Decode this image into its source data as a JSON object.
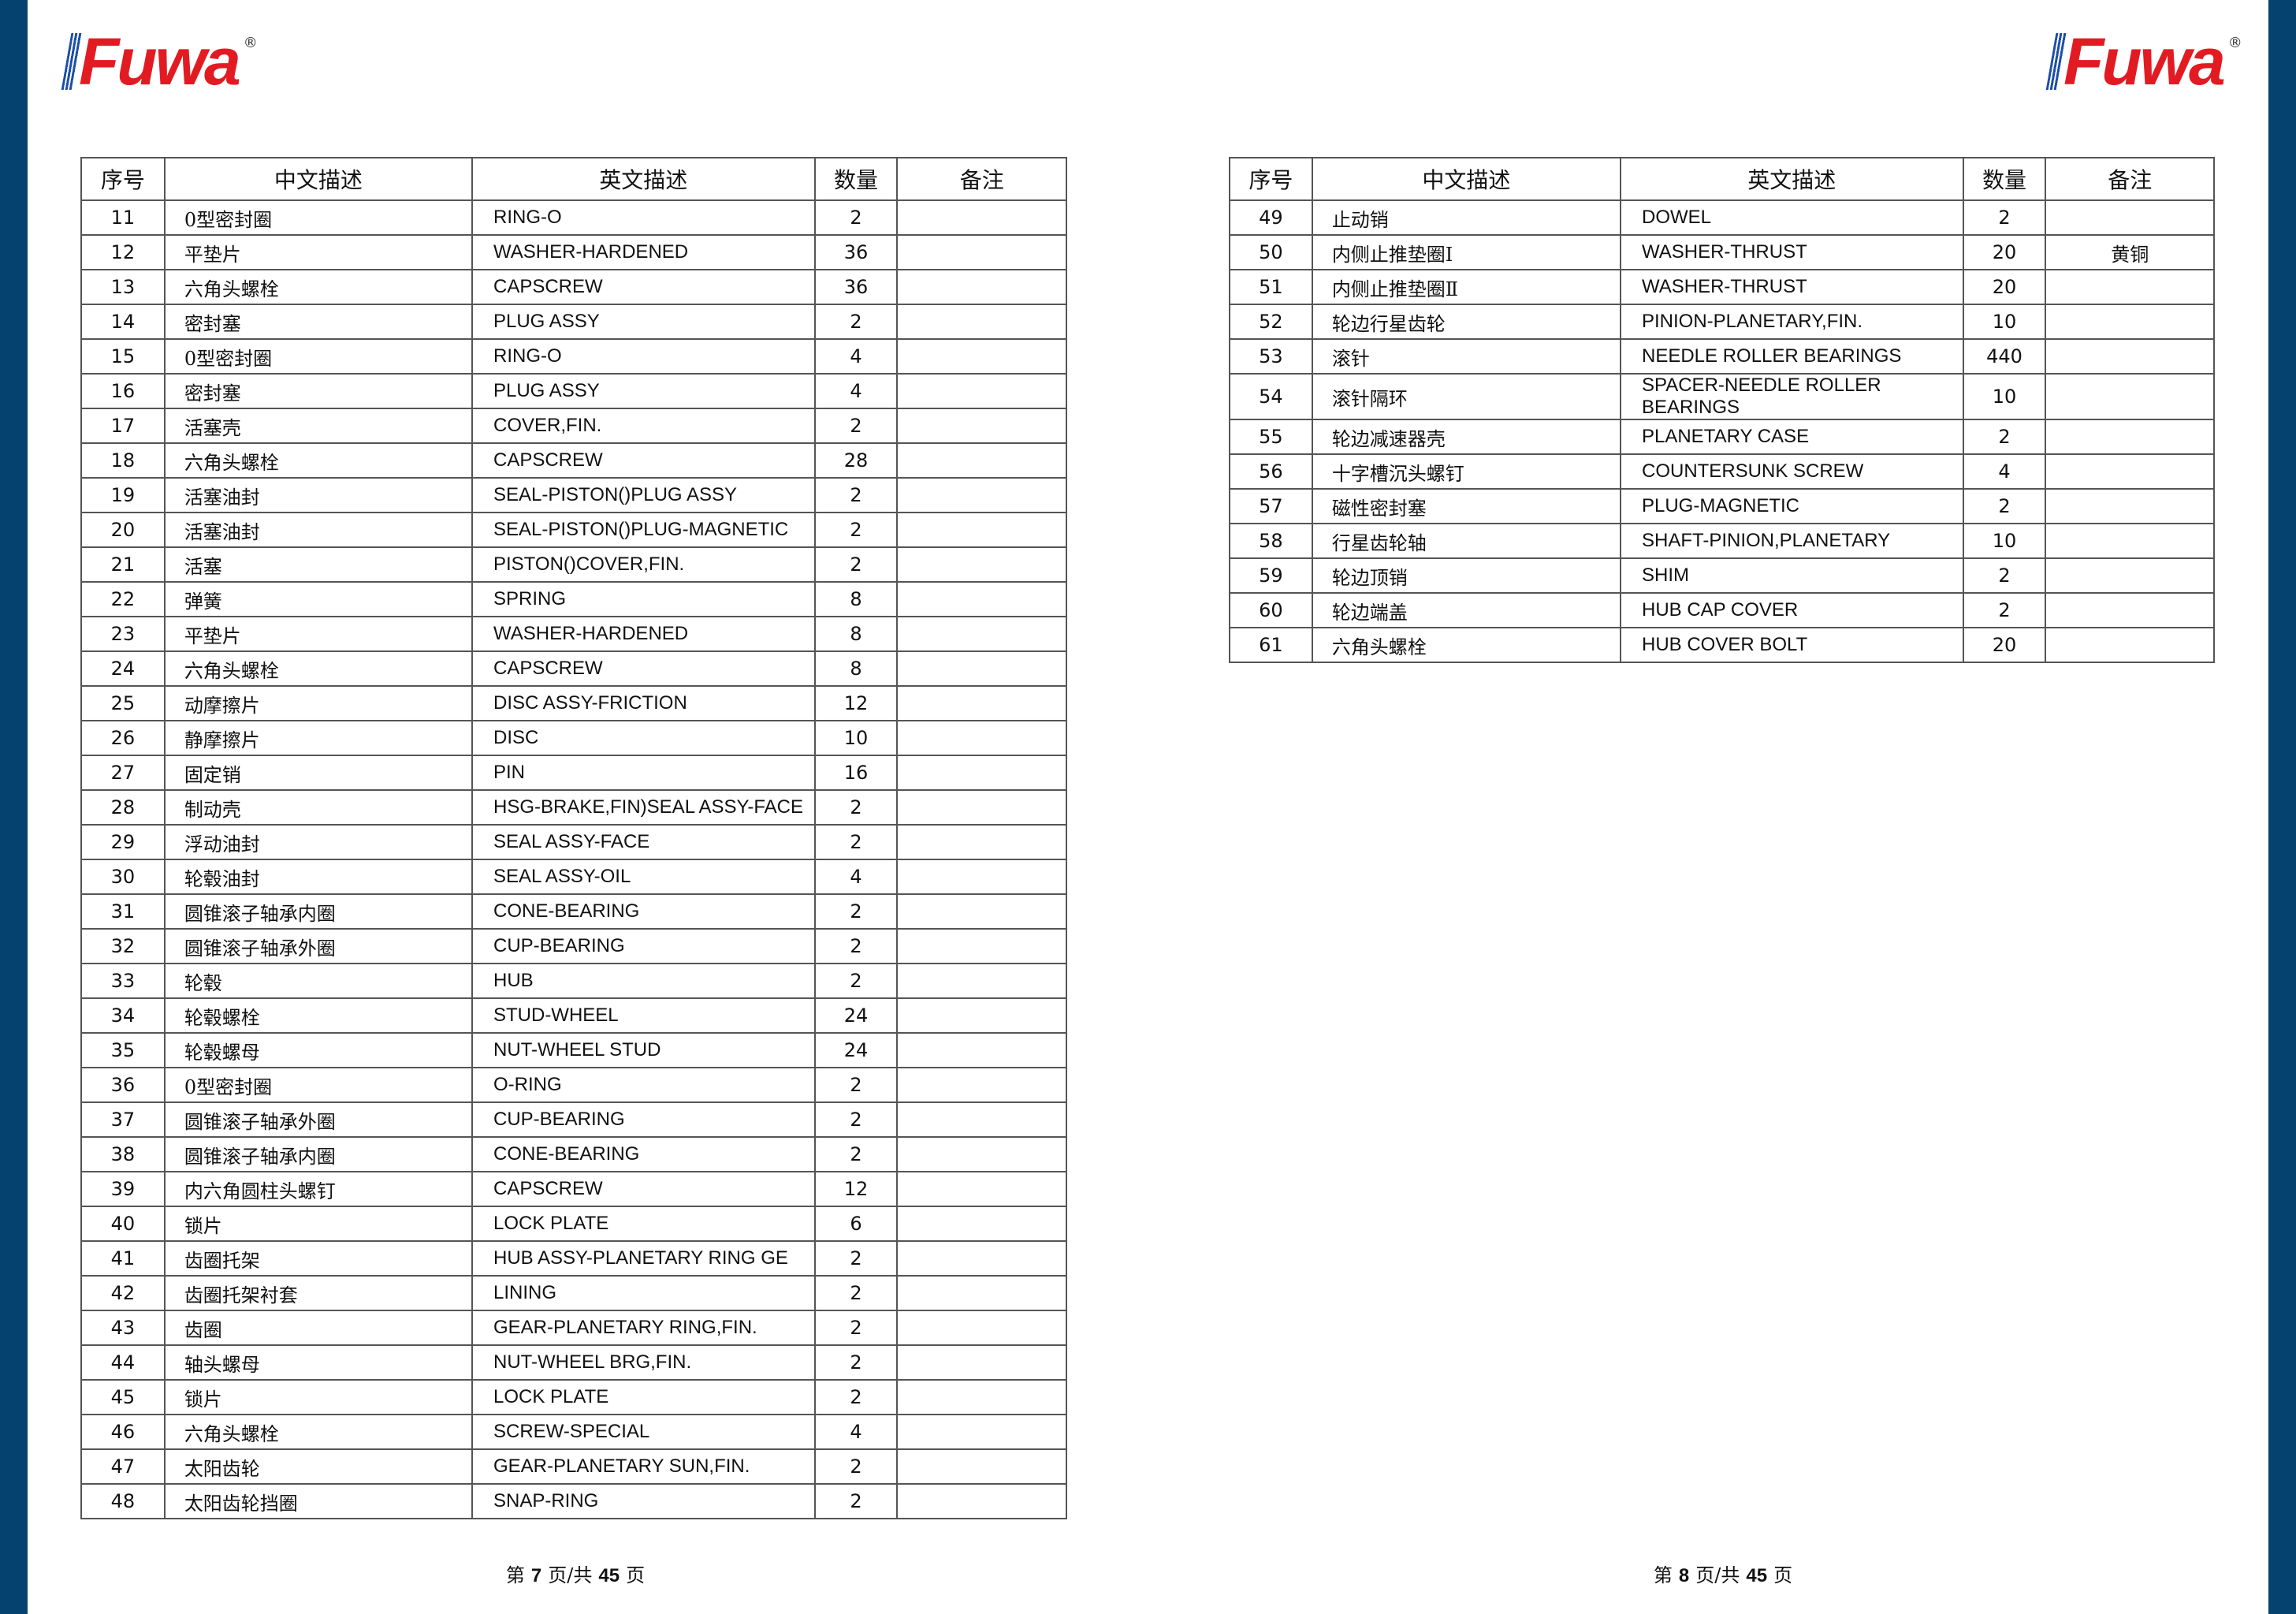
{
  "brand": {
    "logo_text": "Fuwa",
    "registered": "®",
    "logo_color": "#e21b23",
    "bar_color": "#05426f"
  },
  "headers": [
    "序号",
    "中文描述",
    "英文描述",
    "数量",
    "备注"
  ],
  "left_page": {
    "rows": [
      [
        "11",
        "0型密封圈",
        "RING-O",
        "2",
        ""
      ],
      [
        "12",
        "平垫片",
        "WASHER-HARDENED",
        "36",
        ""
      ],
      [
        "13",
        "六角头螺栓",
        "CAPSCREW",
        "36",
        ""
      ],
      [
        "14",
        "密封塞",
        "PLUG ASSY",
        "2",
        ""
      ],
      [
        "15",
        "0型密封圈",
        "RING-O",
        "4",
        ""
      ],
      [
        "16",
        "密封塞",
        "PLUG ASSY",
        "4",
        ""
      ],
      [
        "17",
        "活塞壳",
        "COVER,FIN.",
        "2",
        ""
      ],
      [
        "18",
        "六角头螺栓",
        "CAPSCREW",
        "28",
        ""
      ],
      [
        "19",
        "活塞油封",
        "SEAL-PISTON()PLUG ASSY",
        "2",
        ""
      ],
      [
        "20",
        "活塞油封",
        "SEAL-PISTON()PLUG-MAGNETIC",
        "2",
        ""
      ],
      [
        "21",
        "活塞",
        "PISTON()COVER,FIN.",
        "2",
        ""
      ],
      [
        "22",
        "弹簧",
        "SPRING",
        "8",
        ""
      ],
      [
        "23",
        "平垫片",
        "WASHER-HARDENED",
        "8",
        ""
      ],
      [
        "24",
        "六角头螺栓",
        "CAPSCREW",
        "8",
        ""
      ],
      [
        "25",
        "动摩擦片",
        "DISC ASSY-FRICTION",
        "12",
        ""
      ],
      [
        "26",
        "静摩擦片",
        "DISC",
        "10",
        ""
      ],
      [
        "27",
        "固定销",
        "PIN",
        "16",
        ""
      ],
      [
        "28",
        "制动壳",
        "HSG-BRAKE,FIN)SEAL ASSY-FACE",
        "2",
        ""
      ],
      [
        "29",
        "浮动油封",
        "SEAL ASSY-FACE",
        "2",
        ""
      ],
      [
        "30",
        "轮毂油封",
        "SEAL ASSY-OIL",
        "4",
        ""
      ],
      [
        "31",
        "圆锥滚子轴承内圈",
        "CONE-BEARING",
        "2",
        ""
      ],
      [
        "32",
        "圆锥滚子轴承外圈",
        "CUP-BEARING",
        "2",
        ""
      ],
      [
        "33",
        "轮毂",
        "HUB",
        "2",
        ""
      ],
      [
        "34",
        "轮毂螺栓",
        "STUD-WHEEL",
        "24",
        ""
      ],
      [
        "35",
        "轮毂螺母",
        "NUT-WHEEL STUD",
        "24",
        ""
      ],
      [
        "36",
        "0型密封圈",
        "O-RING",
        "2",
        ""
      ],
      [
        "37",
        "圆锥滚子轴承外圈",
        "CUP-BEARING",
        "2",
        ""
      ],
      [
        "38",
        "圆锥滚子轴承内圈",
        "CONE-BEARING",
        "2",
        ""
      ],
      [
        "39",
        "内六角圆柱头螺钉",
        "CAPSCREW",
        "12",
        ""
      ],
      [
        "40",
        "锁片",
        "LOCK PLATE",
        "6",
        ""
      ],
      [
        "41",
        "齿圈托架",
        "HUB ASSY-PLANETARY RING GE",
        "2",
        ""
      ],
      [
        "42",
        "齿圈托架衬套",
        "LINING",
        "2",
        ""
      ],
      [
        "43",
        "齿圈",
        "GEAR-PLANETARY RING,FIN.",
        "2",
        ""
      ],
      [
        "44",
        "轴头螺母",
        "NUT-WHEEL BRG,FIN.",
        "2",
        ""
      ],
      [
        "45",
        "锁片",
        "LOCK PLATE",
        "2",
        ""
      ],
      [
        "46",
        "六角头螺栓",
        "SCREW-SPECIAL",
        "4",
        ""
      ],
      [
        "47",
        "太阳齿轮",
        "GEAR-PLANETARY SUN,FIN.",
        "2",
        ""
      ],
      [
        "48",
        "太阳齿轮挡圈",
        "SNAP-RING",
        "2",
        ""
      ]
    ],
    "footer": {
      "prefix": "第",
      "page": "7",
      "mid": "页/共",
      "total": "45",
      "suffix": "页"
    }
  },
  "right_page": {
    "rows": [
      [
        "49",
        "止动销",
        "DOWEL",
        "2",
        ""
      ],
      [
        "50",
        "内侧止推垫圈Ⅰ",
        "WASHER-THRUST",
        "20",
        "黄铜"
      ],
      [
        "51",
        "内侧止推垫圈Ⅱ",
        "WASHER-THRUST",
        "20",
        ""
      ],
      [
        "52",
        "轮边行星齿轮",
        "PINION-PLANETARY,FIN.",
        "10",
        ""
      ],
      [
        "53",
        "滚针",
        "NEEDLE ROLLER BEARINGS",
        "440",
        ""
      ],
      [
        "54",
        "滚针隔环",
        "SPACER-NEEDLE ROLLER BEARINGS",
        "10",
        ""
      ],
      [
        "55",
        "轮边减速器壳",
        "PLANETARY CASE",
        "2",
        ""
      ],
      [
        "56",
        "十字槽沉头螺钉",
        "COUNTERSUNK SCREW",
        "4",
        ""
      ],
      [
        "57",
        "磁性密封塞",
        "PLUG-MAGNETIC",
        "2",
        ""
      ],
      [
        "58",
        "行星齿轮轴",
        "SHAFT-PINION,PLANETARY",
        "10",
        ""
      ],
      [
        "59",
        "轮边顶销",
        "SHIM",
        "2",
        ""
      ],
      [
        "60",
        "轮边端盖",
        "HUB CAP COVER",
        "2",
        ""
      ],
      [
        "61",
        "六角头螺栓",
        "HUB COVER BOLT",
        "20",
        ""
      ]
    ],
    "footer": {
      "prefix": "第",
      "page": "8",
      "mid": "页/共",
      "total": "45",
      "suffix": "页"
    }
  }
}
